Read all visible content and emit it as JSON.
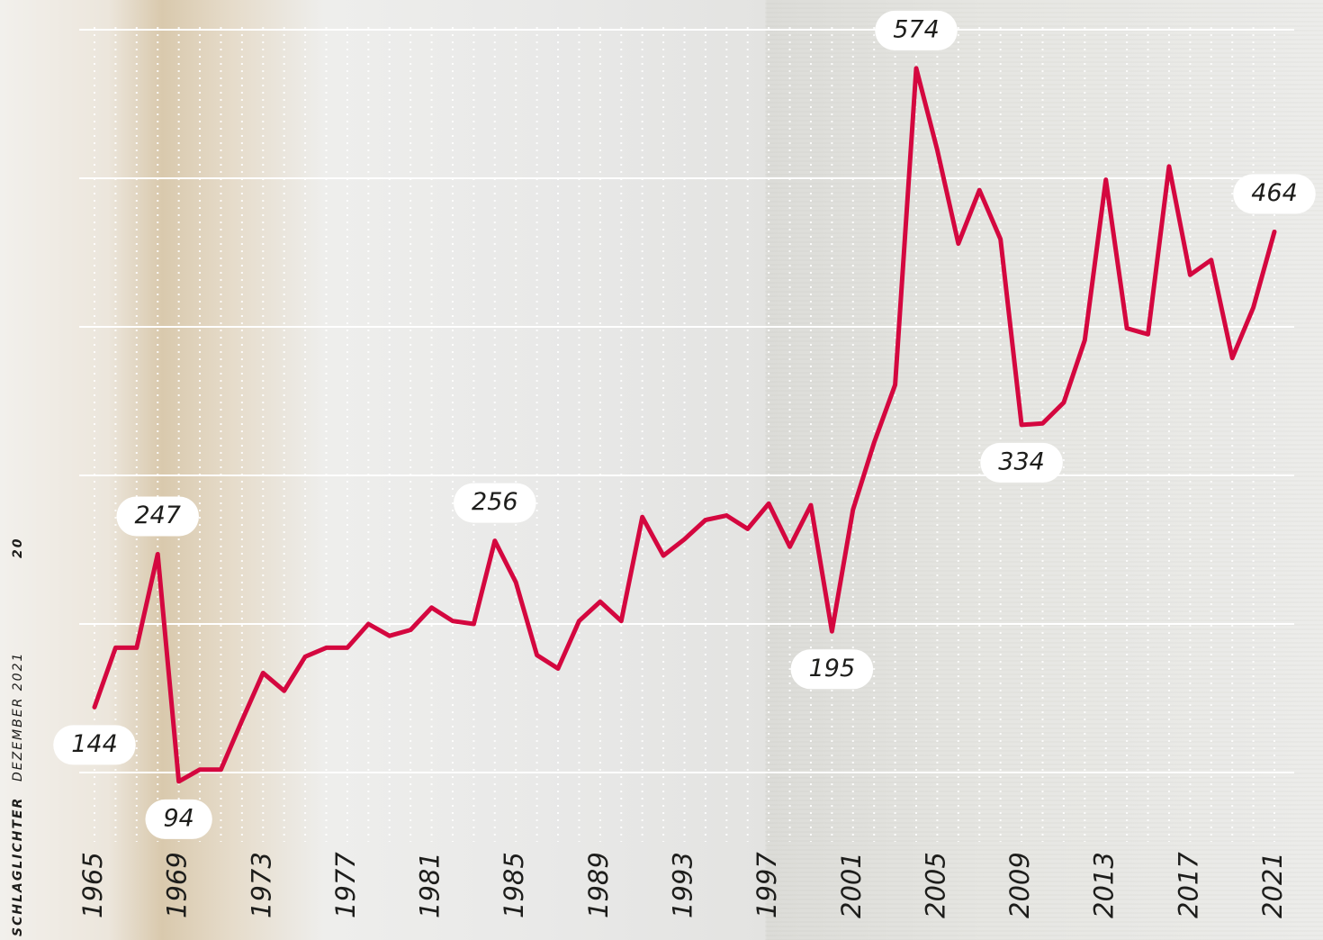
{
  "chart_data": {
    "type": "line",
    "x": [
      1965,
      1966,
      1967,
      1968,
      1969,
      1970,
      1971,
      1972,
      1973,
      1974,
      1975,
      1976,
      1977,
      1978,
      1979,
      1980,
      1981,
      1982,
      1983,
      1984,
      1985,
      1986,
      1987,
      1988,
      1989,
      1990,
      1991,
      1992,
      1993,
      1994,
      1995,
      1996,
      1997,
      1998,
      1999,
      2000,
      2001,
      2002,
      2003,
      2004,
      2005,
      2006,
      2007,
      2008,
      2009,
      2010,
      2011,
      2012,
      2013,
      2014,
      2015,
      2016,
      2017,
      2018,
      2019,
      2020,
      2021
    ],
    "series": [
      {
        "color": "#d4073f",
        "values": [
          144,
          184,
          184,
          247,
          94,
          102,
          102,
          135,
          167,
          155,
          178,
          184,
          184,
          200,
          192,
          196,
          211,
          202,
          200,
          256,
          228,
          179,
          170,
          202,
          215,
          202,
          272,
          246,
          257,
          270,
          273,
          264,
          281,
          252,
          280,
          195,
          277,
          322,
          361,
          574,
          519,
          456,
          492,
          459,
          334,
          335,
          349,
          391,
          499,
          399,
          395,
          508,
          435,
          445,
          379,
          413,
          464
        ],
        "value_labels": [
          "144",
          null,
          null,
          "247",
          "94",
          null,
          null,
          null,
          null,
          null,
          null,
          null,
          null,
          null,
          null,
          null,
          null,
          null,
          null,
          "256",
          null,
          null,
          null,
          null,
          null,
          null,
          null,
          null,
          null,
          null,
          null,
          null,
          null,
          null,
          null,
          "195",
          null,
          null,
          null,
          "574",
          null,
          null,
          null,
          null,
          "334",
          null,
          null,
          null,
          null,
          null,
          null,
          null,
          null,
          null,
          null,
          null,
          "464"
        ]
      }
    ],
    "xlim": [
      1965,
      2021
    ],
    "xticks": [
      1965,
      1969,
      1973,
      1977,
      1981,
      1985,
      1989,
      1993,
      1997,
      2001,
      2005,
      2009,
      2013,
      2017,
      2021
    ],
    "ylim": [
      60,
      620
    ],
    "yticks": [
      100,
      200,
      300,
      400,
      500,
      600
    ],
    "grid": true
  },
  "page": {
    "publication": "SCHLAGLICHTER",
    "issue": "DEZEMBER 2021",
    "page_number": "20"
  }
}
